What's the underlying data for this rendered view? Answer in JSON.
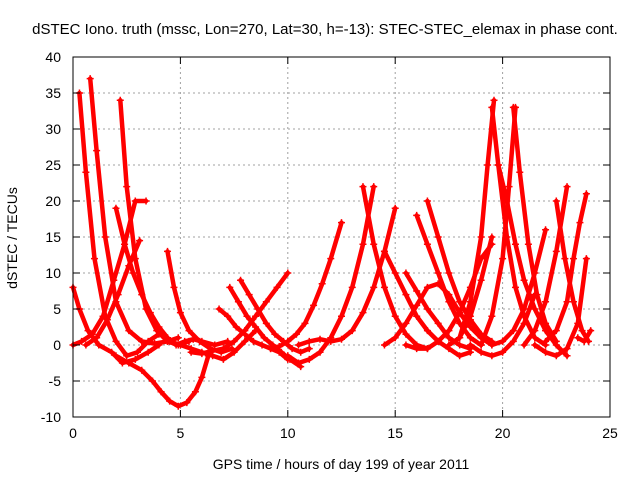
{
  "chart_data": {
    "type": "scatter",
    "title": "dSTEC Iono. truth (mssc, Lon=270, Lat=30, h=-13): STEC-STEC_elemax in phase cont.",
    "xlabel": "GPS time / hours of day 199 of year 2011",
    "ylabel": "dSTEC  / TECUs",
    "xlim": [
      0,
      25
    ],
    "ylim": [
      -10,
      40
    ],
    "xticks": [
      0,
      5,
      10,
      15,
      20,
      25
    ],
    "yticks": [
      -10,
      -5,
      0,
      5,
      10,
      15,
      20,
      25,
      30,
      35,
      40
    ],
    "grid": true,
    "marker": "+",
    "color": "#ff0000",
    "series": [
      {
        "x": [
          0.3,
          0.6,
          1.0,
          1.5,
          2.0,
          2.5,
          3.0,
          3.5,
          4.0
        ],
        "y": [
          35.0,
          24.0,
          12.0,
          4.0,
          0.5,
          -1.5,
          -1.0,
          0.5,
          1.5
        ]
      },
      {
        "x": [
          0.8,
          1.1,
          1.5,
          2.0,
          2.6,
          3.2,
          3.8,
          4.4,
          4.9
        ],
        "y": [
          37.0,
          27.0,
          15.0,
          6.0,
          2.0,
          0.5,
          0.2,
          0.5,
          1.0
        ]
      },
      {
        "x": [
          0.0,
          0.3,
          0.7,
          1.2,
          1.8,
          2.3,
          2.9,
          3.5,
          4.0
        ],
        "y": [
          8.0,
          5.0,
          2.0,
          0.0,
          -1.0,
          -2.5,
          -2.0,
          -1.0,
          0.0
        ]
      },
      {
        "x": [
          0.0,
          0.4,
          0.9,
          1.4,
          1.9,
          2.4,
          2.9,
          3.4
        ],
        "y": [
          0.0,
          0.5,
          1.5,
          4.0,
          9.0,
          14.0,
          20.0,
          20.0
        ]
      },
      {
        "x": [
          0.6,
          1.1,
          1.6,
          2.1,
          2.6,
          3.1
        ],
        "y": [
          0.0,
          1.0,
          3.5,
          7.0,
          11.0,
          14.5
        ]
      },
      {
        "x": [
          2.2,
          2.5,
          2.9,
          3.4,
          3.9,
          4.4,
          4.9,
          5.4
        ],
        "y": [
          34.0,
          22.0,
          12.0,
          5.0,
          2.0,
          0.5,
          0.0,
          0.5
        ]
      },
      {
        "x": [
          4.4,
          4.7,
          5.0,
          5.4,
          5.9,
          6.4,
          6.9,
          7.4
        ],
        "y": [
          13.0,
          8.0,
          4.5,
          2.0,
          0.5,
          -0.5,
          -1.0,
          -0.5
        ]
      },
      {
        "x": [
          2.0,
          2.6,
          3.2,
          3.7,
          4.1,
          4.5,
          4.9,
          5.3,
          5.7,
          6.0,
          6.3
        ],
        "y": [
          -1.5,
          -2.5,
          -3.5,
          -5.0,
          -6.5,
          -7.8,
          -8.5,
          -8.0,
          -6.5,
          -4.5,
          -1.5
        ]
      },
      {
        "x": [
          2.0,
          2.4,
          2.8,
          3.2,
          3.6,
          4.0,
          4.4,
          4.8,
          5.2,
          5.6,
          6.0,
          6.6,
          7.2
        ],
        "y": [
          19.0,
          14.0,
          10.0,
          7.0,
          4.5,
          2.5,
          1.0,
          0.0,
          0.5,
          0.8,
          0.5,
          0.0,
          0.5
        ]
      },
      {
        "x": [
          4.5,
          5.0,
          5.5,
          6.0,
          6.5,
          7.0,
          7.5,
          8.0,
          8.5
        ],
        "y": [
          0.5,
          0.0,
          -0.5,
          -1.0,
          -1.5,
          -2.0,
          -1.0,
          0.5,
          2.0
        ]
      },
      {
        "x": [
          5.5,
          6.0,
          6.5,
          7.0,
          7.5,
          8.0,
          8.5,
          9.0,
          9.5,
          10.0
        ],
        "y": [
          -1.0,
          -1.2,
          -0.8,
          -0.5,
          0.5,
          2.0,
          4.0,
          6.0,
          8.0,
          10.0
        ]
      },
      {
        "x": [
          7.3,
          7.7,
          8.1,
          8.5,
          8.9,
          9.3,
          9.7,
          10.1,
          10.6
        ],
        "y": [
          8.0,
          6.0,
          4.0,
          2.5,
          1.0,
          0.0,
          -1.0,
          -2.0,
          -3.0
        ]
      },
      {
        "x": [
          7.8,
          8.2,
          8.6,
          9.0,
          9.4,
          9.8,
          10.2,
          10.6,
          11.0
        ],
        "y": [
          9.0,
          7.0,
          5.0,
          3.0,
          1.5,
          0.5,
          -0.5,
          -1.0,
          -0.5
        ]
      },
      {
        "x": [
          6.8,
          7.2,
          7.6,
          8.0,
          8.4,
          8.8,
          9.2,
          9.6,
          10.0
        ],
        "y": [
          5.0,
          4.0,
          2.5,
          1.5,
          0.5,
          0.0,
          -0.5,
          -1.0,
          -2.0
        ]
      },
      {
        "x": [
          9.2,
          9.6,
          10.0,
          10.4,
          10.8,
          11.2,
          11.6,
          12.0,
          12.5
        ],
        "y": [
          -0.5,
          -0.2,
          0.5,
          1.5,
          3.0,
          5.5,
          8.5,
          12.0,
          17.0
        ]
      },
      {
        "x": [
          10.0,
          10.5,
          11.0,
          11.5,
          12.0,
          12.5,
          13.0,
          13.5,
          14.0
        ],
        "y": [
          -1.5,
          -2.5,
          -2.0,
          -1.0,
          1.0,
          4.0,
          8.0,
          14.0,
          22.0
        ]
      },
      {
        "x": [
          10.5,
          11.0,
          11.5,
          12.0,
          12.5,
          13.0,
          13.5,
          14.0,
          14.5,
          15.0
        ],
        "y": [
          0.0,
          0.5,
          0.8,
          0.5,
          0.8,
          2.0,
          4.5,
          8.0,
          13.0,
          19.0
        ]
      },
      {
        "x": [
          13.5,
          14.0,
          14.5,
          15.0,
          15.5,
          16.0,
          16.5
        ],
        "y": [
          22.0,
          14.0,
          8.0,
          4.0,
          1.5,
          0.0,
          -0.5
        ]
      },
      {
        "x": [
          14.5,
          15.0,
          15.5,
          16.0,
          16.5,
          17.0,
          17.5,
          18.0,
          18.5
        ],
        "y": [
          13.0,
          10.0,
          7.0,
          4.0,
          2.0,
          0.5,
          -0.5,
          -1.5,
          -1.0
        ]
      },
      {
        "x": [
          15.5,
          16.0,
          16.5,
          17.0,
          17.5,
          18.0,
          18.5
        ],
        "y": [
          10.0,
          7.5,
          5.0,
          3.0,
          1.0,
          0.0,
          -0.5
        ]
      },
      {
        "x": [
          16.0,
          16.5,
          17.0,
          17.5,
          18.0,
          18.5,
          19.0
        ],
        "y": [
          18.0,
          14.0,
          10.0,
          6.0,
          3.0,
          1.0,
          0.0
        ]
      },
      {
        "x": [
          16.5,
          17.0,
          17.5,
          18.0,
          18.5,
          19.0,
          19.5
        ],
        "y": [
          20.0,
          15.0,
          10.0,
          6.0,
          3.5,
          1.5,
          0.5
        ]
      },
      {
        "x": [
          14.5,
          15.0,
          15.5,
          16.0,
          16.5,
          17.0,
          17.5,
          18.0,
          18.5,
          19.0,
          19.5
        ],
        "y": [
          0.0,
          1.0,
          3.0,
          5.5,
          8.0,
          8.5,
          7.0,
          4.5,
          2.5,
          1.0,
          0.0
        ]
      },
      {
        "x": [
          15.5,
          16.0,
          16.5,
          17.0,
          17.5,
          18.0,
          18.5,
          19.0,
          19.5
        ],
        "y": [
          0.0,
          -0.5,
          -0.5,
          0.5,
          2.0,
          4.5,
          8.0,
          12.0,
          14.0
        ]
      },
      {
        "x": [
          17.5,
          18.0,
          18.5,
          19.0,
          19.5
        ],
        "y": [
          0.0,
          1.0,
          4.0,
          9.0,
          15.0
        ]
      },
      {
        "x": [
          18.0,
          18.5,
          19.0,
          19.3,
          19.6
        ],
        "y": [
          1.0,
          6.0,
          15.0,
          25.0,
          34.0
        ]
      },
      {
        "x": [
          19.0,
          19.5,
          20.0,
          20.3,
          20.6
        ],
        "y": [
          0.0,
          4.0,
          12.0,
          22.0,
          33.0
        ]
      },
      {
        "x": [
          19.5,
          19.8,
          20.2,
          20.6,
          21.0,
          21.5,
          22.0
        ],
        "y": [
          33.0,
          25.0,
          15.0,
          8.0,
          4.0,
          1.0,
          0.0
        ]
      },
      {
        "x": [
          20.5,
          20.8,
          21.2,
          21.6,
          22.0,
          22.5
        ],
        "y": [
          33.0,
          24.0,
          14.0,
          7.0,
          3.0,
          0.5
        ]
      },
      {
        "x": [
          19.8,
          20.2,
          20.6,
          21.0,
          21.5,
          22.0,
          22.5,
          23.0
        ],
        "y": [
          25.0,
          20.0,
          14.0,
          9.0,
          5.0,
          2.0,
          0.0,
          -1.5
        ]
      },
      {
        "x": [
          19.5,
          20.0,
          20.5,
          21.0,
          21.5,
          22.0
        ],
        "y": [
          0.0,
          0.5,
          2.0,
          5.0,
          10.0,
          16.0
        ]
      },
      {
        "x": [
          21.0,
          21.5,
          22.0,
          22.5,
          23.0
        ],
        "y": [
          0.0,
          2.0,
          6.0,
          13.0,
          22.0
        ]
      },
      {
        "x": [
          22.5,
          22.9,
          23.3,
          23.7,
          24.0
        ],
        "y": [
          20.0,
          12.0,
          6.0,
          2.0,
          0.5
        ]
      },
      {
        "x": [
          21.5,
          22.0,
          22.5,
          23.0,
          23.5,
          23.9
        ],
        "y": [
          0.0,
          -1.0,
          -1.5,
          -0.5,
          3.0,
          12.0
        ]
      },
      {
        "x": [
          22.0,
          22.5,
          23.0,
          23.3,
          23.6,
          23.9
        ],
        "y": [
          0.5,
          2.0,
          6.0,
          12.0,
          17.0,
          21.0
        ]
      },
      {
        "x": [
          18.5,
          19.0,
          19.5,
          20.0,
          20.5,
          21.0,
          21.5
        ],
        "y": [
          0.0,
          -1.0,
          -1.5,
          -1.0,
          0.5,
          3.0,
          7.0
        ]
      },
      {
        "x": [
          23.5,
          23.8,
          24.1
        ],
        "y": [
          1.0,
          0.5,
          2.0
        ]
      }
    ]
  }
}
